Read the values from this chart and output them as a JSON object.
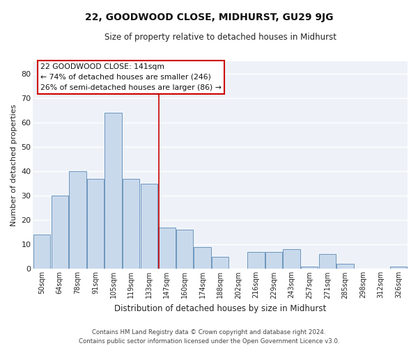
{
  "title": "22, GOODWOOD CLOSE, MIDHURST, GU29 9JG",
  "subtitle": "Size of property relative to detached houses in Midhurst",
  "xlabel": "Distribution of detached houses by size in Midhurst",
  "ylabel": "Number of detached properties",
  "bar_labels": [
    "50sqm",
    "64sqm",
    "78sqm",
    "91sqm",
    "105sqm",
    "119sqm",
    "133sqm",
    "147sqm",
    "160sqm",
    "174sqm",
    "188sqm",
    "202sqm",
    "216sqm",
    "229sqm",
    "243sqm",
    "257sqm",
    "271sqm",
    "285sqm",
    "298sqm",
    "312sqm",
    "326sqm"
  ],
  "bar_values": [
    14,
    30,
    40,
    37,
    64,
    37,
    35,
    17,
    16,
    9,
    5,
    0,
    7,
    7,
    8,
    1,
    6,
    2,
    0,
    0,
    1
  ],
  "bar_color": "#c9d9ec",
  "bar_edge_color": "#5b8ab5",
  "ylim": [
    0,
    85
  ],
  "yticks": [
    0,
    10,
    20,
    30,
    40,
    50,
    60,
    70,
    80
  ],
  "annotation_text": "22 GOODWOOD CLOSE: 141sqm\n← 74% of detached houses are smaller (246)\n26% of semi-detached houses are larger (86) →",
  "annotation_box_color": "#ffffff",
  "annotation_box_edge_color": "#cc0000",
  "footer_line1": "Contains HM Land Registry data © Crown copyright and database right 2024.",
  "footer_line2": "Contains public sector information licensed under the Open Government Licence v3.0.",
  "fig_bg_color": "#ffffff",
  "plot_bg_color": "#eef2f8",
  "grid_color": "#ffffff",
  "vline_color": "#cc0000",
  "vline_pos": 6.57
}
